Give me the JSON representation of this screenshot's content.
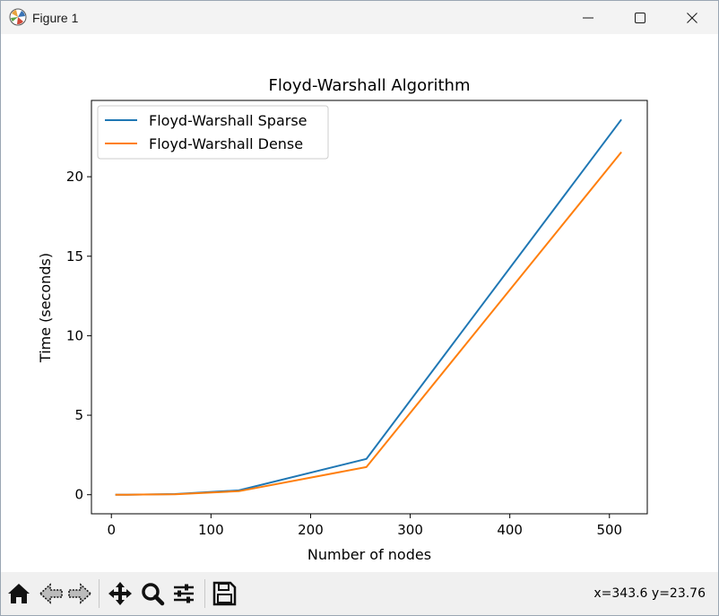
{
  "window": {
    "title": "Figure 1"
  },
  "toolbar": {
    "tools": [
      "home-icon",
      "back-icon",
      "forward-icon",
      "pan-icon",
      "zoom-icon",
      "configure-subplots-icon",
      "save-icon"
    ],
    "coords": "x=343.6 y=23.76"
  },
  "colors": {
    "sparse": "#1f77b4",
    "dense": "#ff7f0e"
  },
  "chart_data": {
    "type": "line",
    "title": "Floyd-Warshall Algorithm",
    "xlabel": "Number of nodes",
    "ylabel": "Time (seconds)",
    "xlim": [
      -20,
      538
    ],
    "ylim": [
      -1.2,
      24.8
    ],
    "xticks": [
      0,
      100,
      200,
      300,
      400,
      500
    ],
    "yticks": [
      0,
      5,
      10,
      15,
      20
    ],
    "legend": "top-left",
    "x": [
      4,
      8,
      16,
      32,
      64,
      128,
      256,
      512
    ],
    "series": [
      {
        "name": "Floyd-Warshall Sparse",
        "color": "#1f77b4",
        "values": [
          0.0,
          0.0,
          0.0,
          0.01,
          0.04,
          0.27,
          2.25,
          23.6
        ]
      },
      {
        "name": "Floyd-Warshall Dense",
        "color": "#ff7f0e",
        "values": [
          0.0,
          0.0,
          0.0,
          0.01,
          0.03,
          0.22,
          1.74,
          21.55
        ]
      }
    ]
  }
}
